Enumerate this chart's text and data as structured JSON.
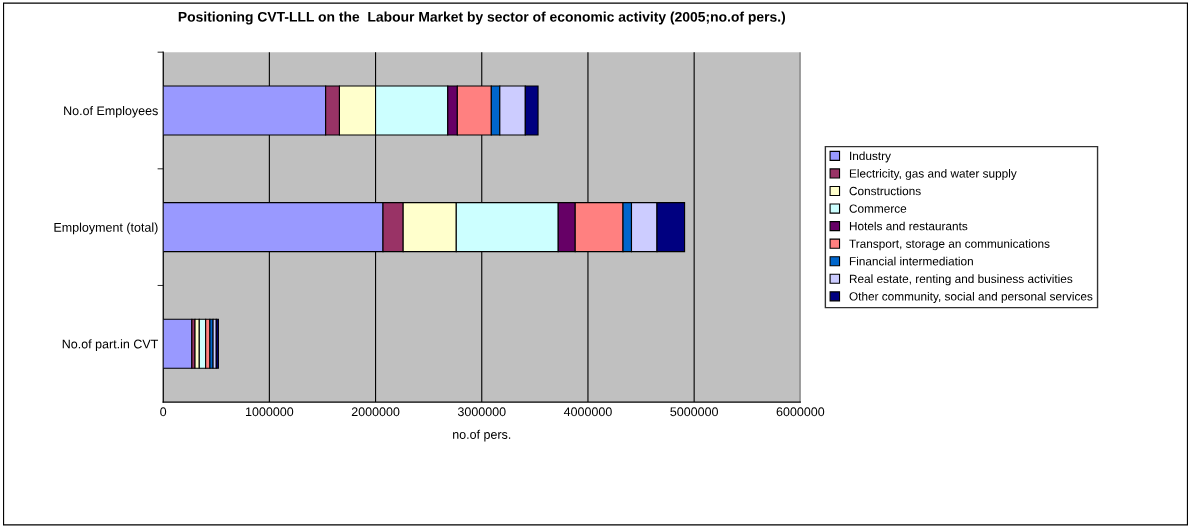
{
  "chart_data": {
    "type": "bar",
    "orientation": "horizontal",
    "stacked": true,
    "title": "Positioning CVT-LLL on the  Labour Market by sector of economic activity (2005;no.of pers.)",
    "xlabel": "no.of pers.",
    "categories": [
      "No.of Employees",
      "Employment (total)",
      "No.of part.in CVT"
    ],
    "series": [
      {
        "name": "Industry",
        "color": "#9999ff",
        "values": [
          1530000,
          2070000,
          270000
        ]
      },
      {
        "name": "Electricity, gas and water supply",
        "color": "#993366",
        "values": [
          130000,
          190000,
          30000
        ]
      },
      {
        "name": "Constructions",
        "color": "#ffffcc",
        "values": [
          340000,
          500000,
          40000
        ]
      },
      {
        "name": "Commerce",
        "color": "#ccffff",
        "values": [
          680000,
          960000,
          60000
        ]
      },
      {
        "name": "Hotels and restaurants",
        "color": "#660066",
        "values": [
          90000,
          160000,
          null
        ]
      },
      {
        "name": "Transport, storage an communications",
        "color": "#ff8080",
        "values": [
          320000,
          450000,
          40000
        ]
      },
      {
        "name": "Financial intermediation",
        "color": "#0066cc",
        "values": [
          80000,
          80000,
          30000
        ]
      },
      {
        "name": "Real estate, renting and business activities",
        "color": "#ccccff",
        "values": [
          240000,
          240000,
          30000
        ]
      },
      {
        "name": "Other community, social and personal services",
        "color": "#000080",
        "values": [
          120000,
          260000,
          20000
        ]
      }
    ],
    "xlim": [
      0,
      6000000
    ],
    "xticks": [
      0,
      1000000,
      2000000,
      3000000,
      4000000,
      5000000,
      6000000
    ],
    "grid": "x",
    "legend": "right"
  }
}
